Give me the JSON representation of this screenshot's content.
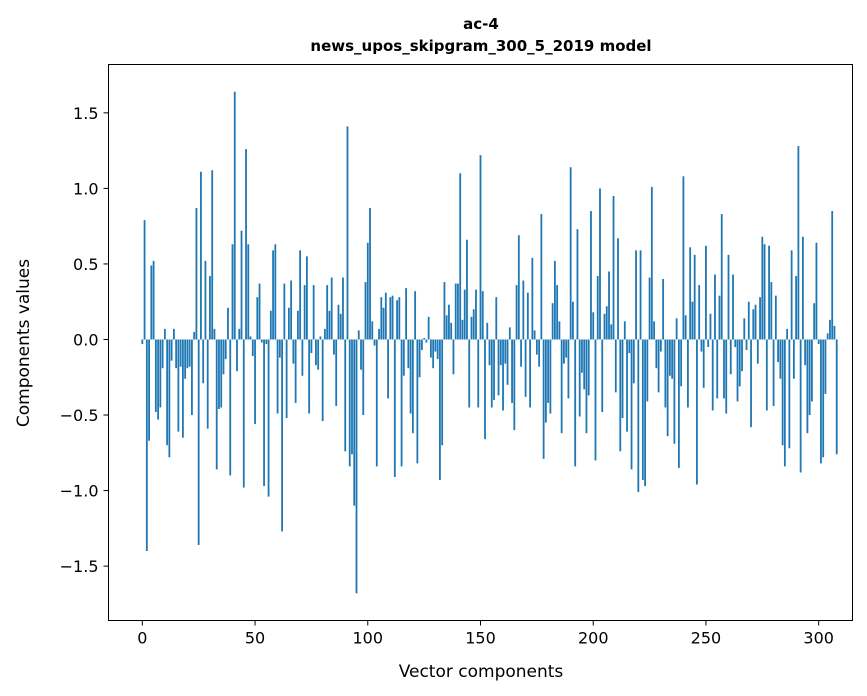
{
  "chart_data": {
    "type": "bar",
    "title": "ac-4",
    "subtitle": "news_upos_skipgram_300_5_2019 model",
    "xlabel": "Vector components",
    "ylabel": "Components values",
    "xlim": [
      -15,
      315
    ],
    "ylim": [
      -1.86,
      1.82
    ],
    "xticks": [
      0,
      50,
      100,
      150,
      200,
      250,
      300
    ],
    "xtick_labels": [
      "0",
      "50",
      "100",
      "150",
      "200",
      "250",
      "300"
    ],
    "yticks": [
      -1.5,
      -1.0,
      -0.5,
      0.0,
      0.5,
      1.0,
      1.5
    ],
    "ytick_labels": [
      "−1.5",
      "−1.0",
      "−0.5",
      "0.0",
      "0.5",
      "1.0",
      "1.5"
    ],
    "color": "#1f77b4",
    "grid": false,
    "values": [
      -0.03,
      0.79,
      -1.4,
      -0.67,
      0.49,
      0.52,
      -0.48,
      -0.53,
      -0.45,
      -0.19,
      0.07,
      -0.7,
      -0.78,
      -0.14,
      0.07,
      -0.19,
      -0.61,
      -0.18,
      -0.65,
      -0.26,
      -0.19,
      -0.18,
      -0.5,
      0.05,
      0.87,
      -1.36,
      1.11,
      -0.29,
      0.52,
      -0.59,
      0.42,
      1.12,
      0.07,
      -0.86,
      -0.46,
      -0.45,
      -0.23,
      -0.13,
      0.21,
      -0.9,
      0.63,
      1.64,
      -0.21,
      0.07,
      0.72,
      -0.98,
      1.26,
      0.63,
      0.02,
      -0.11,
      -0.56,
      0.28,
      0.37,
      -0.02,
      -0.97,
      -0.03,
      -1.04,
      0.19,
      0.59,
      0.63,
      -0.49,
      -0.12,
      -1.27,
      0.37,
      -0.52,
      0.21,
      0.39,
      -0.16,
      -0.42,
      0.19,
      0.59,
      -0.24,
      0.36,
      0.55,
      -0.49,
      -0.09,
      0.36,
      -0.17,
      -0.2,
      0.02,
      -0.54,
      0.07,
      0.36,
      0.19,
      0.41,
      -0.1,
      -0.44,
      0.23,
      0.17,
      0.41,
      -0.74,
      1.41,
      -0.84,
      -0.76,
      -1.1,
      -1.68,
      0.06,
      -0.2,
      -0.5,
      0.38,
      0.64,
      0.87,
      0.12,
      -0.04,
      -0.84,
      0.07,
      0.28,
      0.21,
      0.31,
      -0.39,
      0.28,
      0.29,
      -0.91,
      0.26,
      0.28,
      -0.84,
      -0.24,
      0.34,
      -0.19,
      -0.49,
      -0.62,
      0.32,
      -0.82,
      -0.25,
      -0.07,
      0.01,
      -0.02,
      0.15,
      -0.12,
      -0.19,
      -0.08,
      -0.13,
      -0.93,
      -0.7,
      0.38,
      0.16,
      0.23,
      0.11,
      -0.23,
      0.37,
      0.37,
      1.1,
      0.13,
      0.33,
      0.66,
      -0.45,
      0.15,
      0.2,
      0.33,
      -0.45,
      1.22,
      0.32,
      -0.66,
      0.11,
      -0.17,
      -0.45,
      -0.4,
      0.28,
      -0.37,
      -0.17,
      -0.47,
      -0.16,
      -0.3,
      0.08,
      -0.42,
      -0.6,
      0.36,
      0.69,
      -0.18,
      0.39,
      -0.38,
      0.31,
      -0.45,
      0.54,
      0.06,
      -0.1,
      -0.18,
      0.83,
      -0.79,
      -0.55,
      -0.42,
      -0.49,
      0.24,
      0.52,
      0.36,
      0.12,
      -0.62,
      -0.16,
      -0.12,
      -0.39,
      1.14,
      0.25,
      -0.84,
      0.73,
      -0.51,
      -0.22,
      -0.33,
      -0.62,
      -0.37,
      0.85,
      0.18,
      -0.8,
      0.42,
      1.0,
      -0.48,
      0.17,
      0.22,
      0.45,
      0.1,
      0.95,
      -0.35,
      0.67,
      -0.74,
      -0.52,
      0.12,
      -0.61,
      -0.09,
      -0.86,
      -0.29,
      0.59,
      -1.01,
      0.59,
      -0.93,
      -0.97,
      -0.41,
      0.41,
      1.01,
      0.12,
      -0.19,
      -0.35,
      -0.08,
      0.4,
      -0.45,
      -0.64,
      -0.24,
      -0.26,
      -0.69,
      0.14,
      -0.85,
      -0.31,
      1.08,
      0.16,
      -0.45,
      0.61,
      0.25,
      0.56,
      -0.96,
      0.36,
      -0.08,
      -0.32,
      0.62,
      -0.05,
      0.17,
      -0.47,
      0.43,
      -0.39,
      0.29,
      0.83,
      -0.39,
      -0.49,
      0.56,
      -0.23,
      0.43,
      -0.05,
      -0.41,
      -0.31,
      -0.21,
      0.14,
      -0.07,
      0.25,
      -0.58,
      0.2,
      0.23,
      -0.16,
      0.28,
      0.68,
      0.63,
      -0.47,
      0.62,
      0.38,
      -0.44,
      0.29,
      -0.15,
      -0.26,
      -0.7,
      -0.84,
      0.07,
      -0.72,
      0.59,
      -0.26,
      0.42,
      1.28,
      -0.88,
      0.68,
      -0.17,
      -0.62,
      -0.5,
      -0.41,
      0.24,
      0.64,
      -0.03,
      -0.82,
      -0.78,
      -0.36,
      0.04,
      0.13,
      0.85,
      0.09,
      -0.76
    ]
  }
}
